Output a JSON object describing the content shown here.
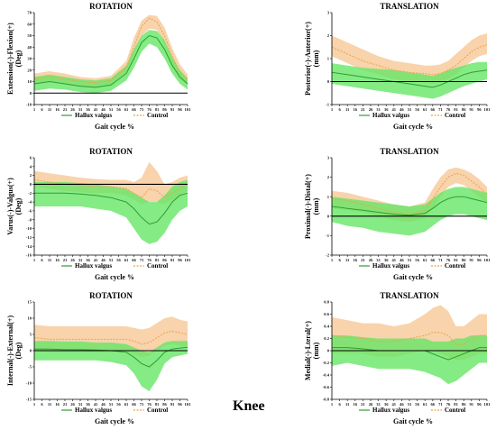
{
  "figure_label": "Knee",
  "colors": {
    "hallux_band": "#66e666",
    "hallux_line": "#2e9e2e",
    "control_band": "#f5c48f",
    "control_line": "#e8a44f",
    "baseline": "#000000"
  },
  "x_ticks": [
    "1",
    "6",
    "11",
    "16",
    "21",
    "26",
    "31",
    "36",
    "41",
    "46",
    "51",
    "56",
    "61",
    "66",
    "71",
    "76",
    "81",
    "86",
    "91",
    "96",
    "101"
  ],
  "chart_data": [
    {
      "type": "area",
      "title": "ROTATION",
      "ylabel_lines": [
        "Extension(-)-Flexion(+)",
        "(Deg)"
      ],
      "xlabel": "Gait cycle %",
      "ylim": [
        -10,
        70
      ],
      "yticks": [
        -10,
        0,
        10,
        20,
        30,
        40,
        50,
        60,
        70
      ],
      "x": [
        1,
        11,
        21,
        31,
        41,
        51,
        61,
        66,
        71,
        76,
        81,
        86,
        91,
        96,
        101
      ],
      "series": [
        {
          "name": "Hallux valgus",
          "mean": [
            8,
            10,
            8,
            6,
            5,
            7,
            17,
            30,
            44,
            50,
            48,
            38,
            24,
            14,
            8
          ],
          "lower": [
            2,
            4,
            3,
            1,
            0,
            2,
            11,
            22,
            36,
            43,
            40,
            30,
            17,
            8,
            3
          ],
          "upper": [
            14,
            16,
            14,
            12,
            11,
            13,
            24,
            38,
            50,
            55,
            54,
            46,
            31,
            20,
            13
          ]
        },
        {
          "name": "Control",
          "mean": [
            12,
            14,
            12,
            10,
            9,
            11,
            22,
            40,
            58,
            65,
            62,
            50,
            32,
            18,
            12
          ],
          "lower": [
            8,
            10,
            8,
            6,
            5,
            7,
            17,
            33,
            50,
            56,
            55,
            42,
            25,
            12,
            7
          ],
          "upper": [
            17,
            19,
            17,
            14,
            13,
            15,
            28,
            48,
            63,
            68,
            67,
            57,
            39,
            25,
            16
          ]
        }
      ],
      "legend": [
        "Hallux valgus",
        "Control"
      ]
    },
    {
      "type": "area",
      "title": "TRANSLATION",
      "ylabel_lines": [
        "Posterior(-)-Anterior(+)",
        "(mm)"
      ],
      "xlabel": "Gait cycle %",
      "ylim": [
        -1,
        3
      ],
      "yticks": [
        -1,
        0,
        1,
        2,
        3
      ],
      "x": [
        1,
        11,
        21,
        31,
        41,
        51,
        61,
        66,
        71,
        76,
        81,
        86,
        91,
        96,
        101
      ],
      "series": [
        {
          "name": "Hallux valgus",
          "mean": [
            0.4,
            0.3,
            0.2,
            0.1,
            0.0,
            -0.1,
            -0.2,
            -0.25,
            -0.15,
            0.0,
            0.15,
            0.3,
            0.4,
            0.45,
            0.5
          ],
          "lower": [
            -0.1,
            -0.2,
            -0.3,
            -0.4,
            -0.5,
            -0.6,
            -0.7,
            -0.75,
            -0.65,
            -0.5,
            -0.35,
            -0.2,
            -0.1,
            0.0,
            0.1
          ],
          "upper": [
            0.8,
            0.7,
            0.6,
            0.55,
            0.5,
            0.4,
            0.3,
            0.25,
            0.35,
            0.5,
            0.6,
            0.7,
            0.8,
            0.85,
            0.85
          ]
        },
        {
          "name": "Control",
          "mean": [
            1.5,
            1.2,
            0.9,
            0.7,
            0.5,
            0.4,
            0.35,
            0.3,
            0.35,
            0.5,
            0.7,
            1.0,
            1.3,
            1.5,
            1.6
          ],
          "lower": [
            1.1,
            0.8,
            0.5,
            0.3,
            0.1,
            0.0,
            -0.05,
            -0.1,
            -0.05,
            0.1,
            0.3,
            0.6,
            0.9,
            1.1,
            1.2
          ],
          "upper": [
            2.0,
            1.7,
            1.4,
            1.1,
            0.9,
            0.8,
            0.7,
            0.7,
            0.75,
            0.9,
            1.2,
            1.5,
            1.8,
            2.0,
            2.1
          ]
        }
      ],
      "legend": [
        "Hallux valgus",
        "Control"
      ]
    },
    {
      "type": "area",
      "title": "ROTATION",
      "ylabel_lines": [
        "Varus(-)-Valgus(+)",
        "(Deg)"
      ],
      "xlabel": "Gait cycle %",
      "ylim": [
        -16,
        6
      ],
      "yticks": [
        -16,
        -14,
        -12,
        -10,
        -8,
        -6,
        -4,
        -2,
        0,
        2,
        4,
        6
      ],
      "x": [
        1,
        11,
        21,
        31,
        41,
        51,
        61,
        66,
        71,
        76,
        81,
        86,
        91,
        96,
        101
      ],
      "series": [
        {
          "name": "Hallux valgus",
          "mean": [
            -2,
            -2,
            -2,
            -2.2,
            -2.5,
            -3,
            -4,
            -5.5,
            -7.5,
            -9,
            -8.5,
            -6.5,
            -4,
            -2.5,
            -2
          ],
          "lower": [
            -5,
            -5,
            -5,
            -5,
            -5.5,
            -6,
            -7.5,
            -10,
            -12.5,
            -13.5,
            -13,
            -11,
            -8,
            -6,
            -5
          ],
          "upper": [
            0.5,
            0.5,
            0.5,
            0.3,
            0,
            -0.5,
            -1,
            -2,
            -3,
            -4,
            -4,
            -2.5,
            -0.5,
            0.5,
            1
          ]
        },
        {
          "name": "Control",
          "mean": [
            1,
            0.5,
            0,
            -0.3,
            -0.5,
            -0.5,
            -1,
            -2,
            -3,
            -1,
            -1.5,
            -3,
            -2,
            -1,
            0
          ],
          "lower": [
            -0.5,
            -1,
            -1.5,
            -1.8,
            -2,
            -2,
            -2.5,
            -3.5,
            -4.5,
            -4,
            -4,
            -4.5,
            -3.5,
            -2.5,
            -1.5
          ],
          "upper": [
            3,
            2.5,
            2,
            1.5,
            1.2,
            1,
            1,
            0.5,
            1.5,
            5,
            3,
            0,
            0.5,
            1.5,
            2
          ]
        }
      ],
      "legend": [
        "Hallux valgus",
        "Control"
      ]
    },
    {
      "type": "area",
      "title": "TRANSLATION",
      "ylabel_lines": [
        "Proximal(-)-Distal(+)",
        "(mm)"
      ],
      "xlabel": "Gait cycle %",
      "ylim": [
        -2,
        3
      ],
      "yticks": [
        -2,
        -1,
        0,
        1,
        2,
        3
      ],
      "x": [
        1,
        11,
        21,
        31,
        41,
        51,
        61,
        66,
        71,
        76,
        81,
        86,
        91,
        96,
        101
      ],
      "series": [
        {
          "name": "Hallux valgus",
          "mean": [
            0.5,
            0.4,
            0.3,
            0.2,
            0.1,
            0.05,
            0.15,
            0.4,
            0.7,
            0.9,
            1.0,
            1.0,
            0.9,
            0.8,
            0.7
          ],
          "lower": [
            -0.3,
            -0.5,
            -0.6,
            -0.8,
            -0.9,
            -1.0,
            -0.8,
            -0.5,
            -0.2,
            0.0,
            0.1,
            0.1,
            0.0,
            -0.1,
            -0.2
          ],
          "upper": [
            1.0,
            0.9,
            0.8,
            0.7,
            0.6,
            0.5,
            0.6,
            0.9,
            1.2,
            1.4,
            1.5,
            1.5,
            1.4,
            1.3,
            1.2
          ]
        },
        {
          "name": "Control",
          "mean": [
            0.9,
            0.8,
            0.6,
            0.4,
            0.2,
            0.1,
            0.3,
            0.9,
            1.5,
            2.0,
            2.2,
            2.1,
            1.8,
            1.5,
            1.1
          ],
          "lower": [
            0.4,
            0.3,
            0.2,
            0.0,
            -0.2,
            -0.3,
            -0.1,
            0.4,
            1.0,
            1.5,
            1.7,
            1.6,
            1.3,
            1.0,
            0.6
          ],
          "upper": [
            1.3,
            1.2,
            1.0,
            0.8,
            0.6,
            0.5,
            0.7,
            1.4,
            2.0,
            2.4,
            2.5,
            2.4,
            2.2,
            1.9,
            1.5
          ]
        }
      ],
      "legend": [
        "Hallux valgus",
        "Control"
      ]
    },
    {
      "type": "area",
      "title": "ROTATION",
      "ylabel_lines": [
        "Internal(-)-External(+)",
        "(Deg)"
      ],
      "xlabel": "Gait cycle %",
      "ylim": [
        -15,
        15
      ],
      "yticks": [
        -15,
        -10,
        -5,
        0,
        5,
        10,
        15
      ],
      "x": [
        1,
        11,
        21,
        31,
        41,
        51,
        61,
        66,
        71,
        76,
        81,
        86,
        91,
        96,
        101
      ],
      "series": [
        {
          "name": "Hallux valgus",
          "mean": [
            0.5,
            0.5,
            0.3,
            0.3,
            0.2,
            0.0,
            -0.5,
            -2,
            -4,
            -5,
            -3,
            -0.5,
            0.5,
            0.8,
            1
          ],
          "lower": [
            -3,
            -3,
            -3,
            -3,
            -3,
            -3.5,
            -4.5,
            -7,
            -11,
            -12.5,
            -9,
            -4,
            -2,
            -1.5,
            -1
          ],
          "upper": [
            3,
            3,
            2.8,
            2.8,
            2.5,
            2.5,
            2,
            1,
            0,
            -0.5,
            1,
            2.5,
            3,
            3,
            3
          ]
        },
        {
          "name": "Control",
          "mean": [
            4,
            3.5,
            3.5,
            3.5,
            3.5,
            3.5,
            3.5,
            3,
            2,
            2.5,
            4,
            5.5,
            6,
            5.5,
            5
          ],
          "lower": [
            0,
            -0.5,
            -0.5,
            -0.5,
            -0.5,
            -0.5,
            -0.5,
            -1,
            -2,
            -1.5,
            0,
            1.5,
            2,
            1.5,
            1
          ],
          "upper": [
            8,
            7.5,
            7.5,
            7.5,
            7.5,
            7.5,
            7.5,
            7,
            6.5,
            7,
            8.5,
            10,
            10.5,
            9.5,
            9
          ]
        }
      ],
      "legend": [
        "Hallux valgus",
        "Control"
      ]
    },
    {
      "type": "area",
      "title": "TRANSLATION",
      "ylabel_lines": [
        "Medial(-)-Lteral(+)",
        "(mm)"
      ],
      "xlabel": "Gait cycle %",
      "ylim": [
        -0.8,
        0.8
      ],
      "yticks": [
        -0.8,
        -0.6,
        -0.4,
        -0.2,
        0,
        0.2,
        0.4,
        0.6,
        0.8
      ],
      "x": [
        1,
        11,
        21,
        31,
        41,
        51,
        61,
        66,
        71,
        76,
        81,
        86,
        91,
        96,
        101
      ],
      "series": [
        {
          "name": "Hallux valgus",
          "mean": [
            0.05,
            0.05,
            0.03,
            0.0,
            0.0,
            0.0,
            0.0,
            -0.05,
            -0.1,
            -0.15,
            -0.1,
            -0.05,
            0.0,
            0.05,
            0.05
          ],
          "lower": [
            -0.25,
            -0.2,
            -0.25,
            -0.3,
            -0.3,
            -0.3,
            -0.35,
            -0.4,
            -0.45,
            -0.55,
            -0.5,
            -0.4,
            -0.3,
            -0.2,
            -0.2
          ],
          "upper": [
            0.25,
            0.25,
            0.22,
            0.2,
            0.2,
            0.2,
            0.2,
            0.15,
            0.15,
            0.15,
            0.2,
            0.2,
            0.25,
            0.25,
            0.25
          ]
        },
        {
          "name": "Control",
          "mean": [
            0.25,
            0.22,
            0.2,
            0.15,
            0.15,
            0.2,
            0.25,
            0.3,
            0.3,
            0.25,
            0.1,
            0.1,
            0.2,
            0.25,
            0.25
          ],
          "lower": [
            -0.05,
            -0.05,
            -0.05,
            -0.1,
            -0.1,
            -0.05,
            0.0,
            0.0,
            -0.05,
            -0.1,
            -0.15,
            -0.15,
            -0.1,
            -0.05,
            -0.05
          ],
          "upper": [
            0.55,
            0.5,
            0.45,
            0.45,
            0.4,
            0.45,
            0.6,
            0.7,
            0.75,
            0.65,
            0.4,
            0.4,
            0.5,
            0.6,
            0.6
          ]
        }
      ],
      "legend": [
        "Hallux valgus",
        "Control"
      ]
    }
  ]
}
